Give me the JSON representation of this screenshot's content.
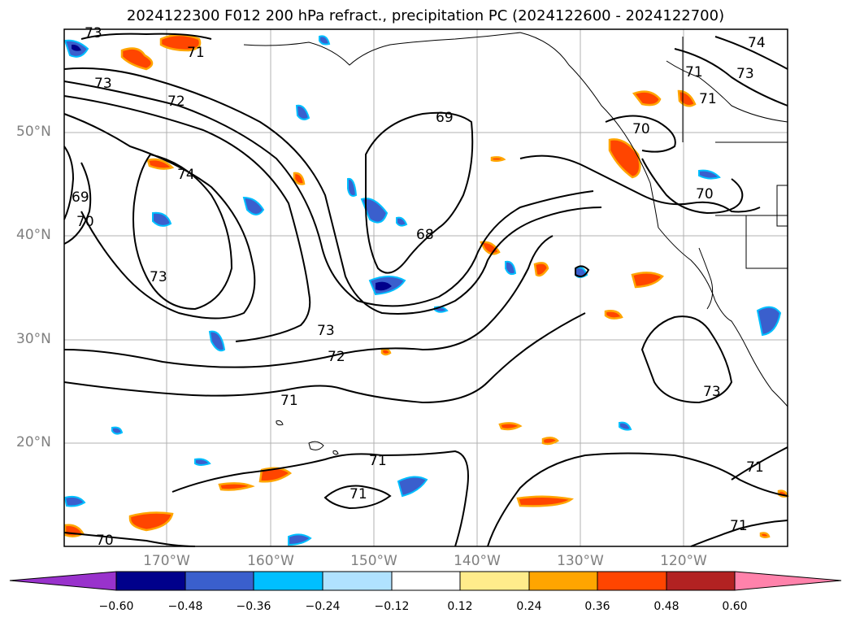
{
  "title": "2024122300 F012 200 hPa refract., precipitation PC (2024122600 - 2024122700)",
  "lat_labels": [
    "50°N",
    "40°N",
    "30°N",
    "20°N"
  ],
  "lon_labels": [
    "170°W",
    "160°W",
    "150°W",
    "140°W",
    "130°W",
    "120°W"
  ],
  "colorbar": {
    "ticks": [
      "−0.60",
      "−0.48",
      "−0.36",
      "−0.24",
      "−0.12",
      "0.12",
      "0.24",
      "0.36",
      "0.48",
      "0.60"
    ],
    "colors": [
      "#9932cc",
      "#00008b",
      "#3a5fcd",
      "#00bfff",
      "#b0e2ff",
      "#ffffff",
      "#ffec8b",
      "#ffa500",
      "#ff4500",
      "#b22222",
      "#ff82ab"
    ]
  },
  "contour_labels": [
    "73",
    "71",
    "73",
    "72",
    "74",
    "69",
    "70",
    "68",
    "73",
    "73",
    "72",
    "71",
    "69",
    "74",
    "73",
    "71",
    "70",
    "70",
    "71",
    "71",
    "71",
    "73",
    "71",
    "71",
    "70"
  ],
  "colors": {
    "contour": "#000000",
    "grid": "#b0b0b0",
    "coast": "#000000",
    "axis_label": "#7f7f7f"
  }
}
